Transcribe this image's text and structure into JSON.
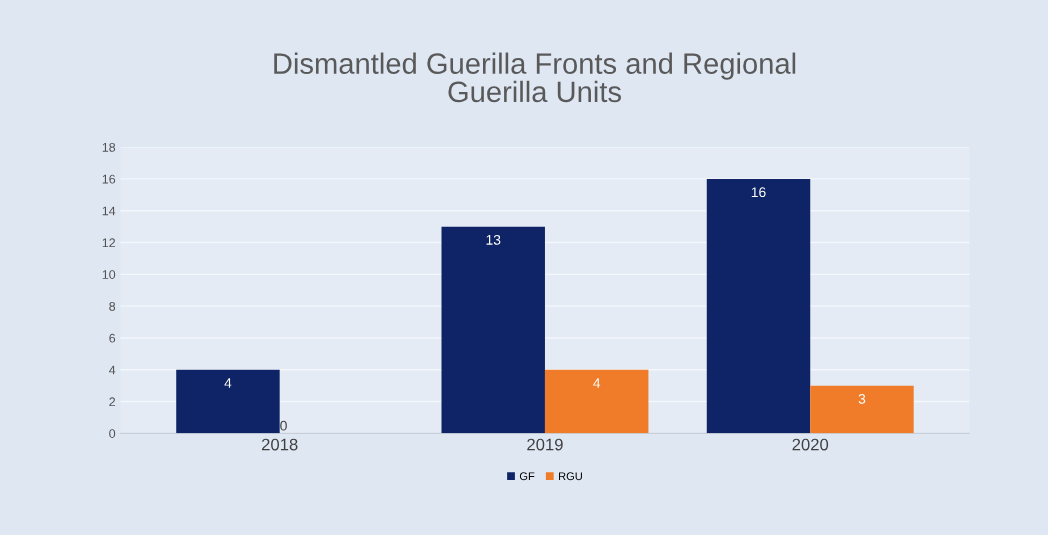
{
  "chart_data": {
    "type": "bar",
    "title": "Dismantled Guerilla Fronts and Regional\nGuerilla Units",
    "categories": [
      "2018",
      "2019",
      "2020"
    ],
    "series": [
      {
        "name": "GF",
        "color": "#0e2466",
        "values": [
          4,
          13,
          16
        ],
        "value_labels": [
          "4",
          "13",
          "16"
        ]
      },
      {
        "name": "RGU",
        "color": "#f07c2a",
        "values": [
          0,
          4,
          3
        ],
        "value_labels": [
          "0",
          "4",
          "3"
        ]
      }
    ],
    "ylim": [
      0,
      18
    ],
    "yticks": [
      0,
      2,
      4,
      6,
      8,
      10,
      12,
      14,
      16,
      18
    ],
    "grid": "y",
    "legend": "bottom"
  }
}
